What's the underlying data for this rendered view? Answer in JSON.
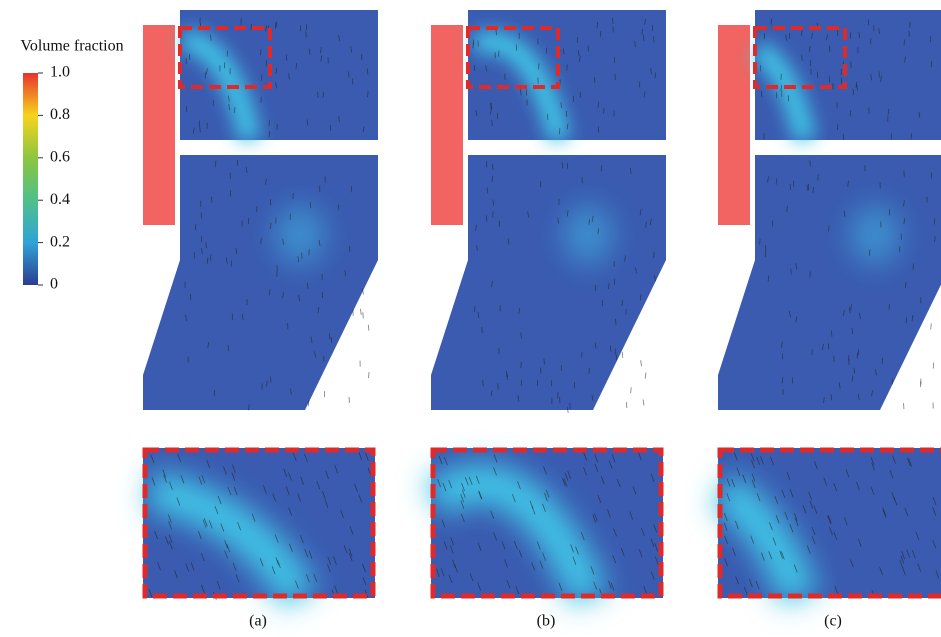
{
  "colorbar": {
    "title": "Volume fraction",
    "lim": [
      0,
      1
    ],
    "ticks": [
      {
        "value": 1,
        "label": "1.0"
      },
      0.8,
      0.6,
      0.4,
      0.2,
      0
    ]
  },
  "panels": [
    {
      "label": "(a)"
    },
    {
      "label": "(b)"
    },
    {
      "label": "(c)"
    }
  ]
}
